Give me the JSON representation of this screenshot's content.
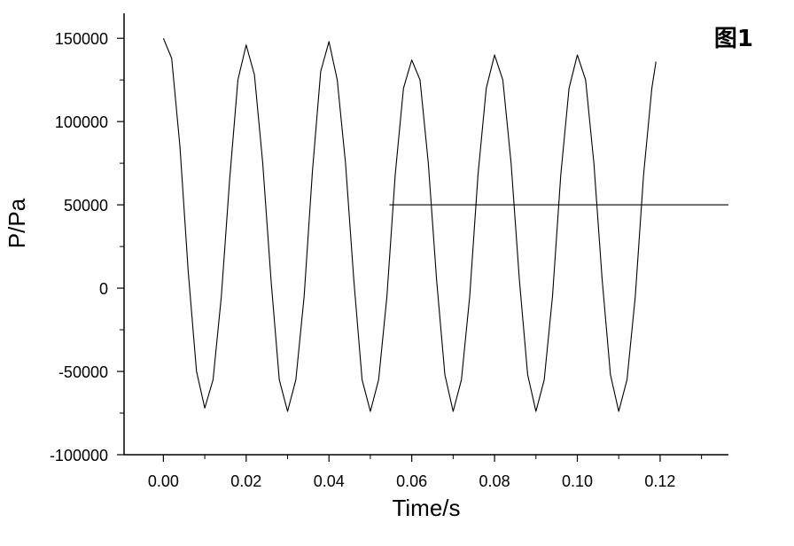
{
  "chart_data": {
    "type": "line",
    "badge": "图1",
    "xlabel": "Time/s",
    "ylabel": "P/Pa",
    "xlim": [
      -0.0095,
      0.1365
    ],
    "ylim": [
      -100000,
      165000
    ],
    "x_ticks": [
      0.0,
      0.02,
      0.04,
      0.06,
      0.08,
      0.1,
      0.12
    ],
    "x_tick_labels": [
      "0.00",
      "0.02",
      "0.04",
      "0.06",
      "0.08",
      "0.10",
      "0.12"
    ],
    "y_ticks": [
      -100000,
      -50000,
      0,
      50000,
      100000,
      150000
    ],
    "y_tick_labels": [
      "-100000",
      "-50000",
      "0",
      "50000",
      "100000",
      "150000"
    ],
    "grid": false,
    "series": [
      {
        "values_description_free": true,
        "x": [
          0.0,
          0.002,
          0.004,
          0.006,
          0.008,
          0.01,
          0.012,
          0.014,
          0.016,
          0.018,
          0.02,
          0.022,
          0.024,
          0.026,
          0.028,
          0.03,
          0.032,
          0.034,
          0.036,
          0.038,
          0.04,
          0.042,
          0.044,
          0.046,
          0.048,
          0.05,
          0.052,
          0.054,
          0.056,
          0.058,
          0.06,
          0.062,
          0.064,
          0.066,
          0.068,
          0.07,
          0.072,
          0.074,
          0.076,
          0.078,
          0.08,
          0.082,
          0.084,
          0.086,
          0.088,
          0.09,
          0.092,
          0.094,
          0.096,
          0.098,
          0.1,
          0.102,
          0.104,
          0.106,
          0.108,
          0.11,
          0.112,
          0.114,
          0.116,
          0.118,
          0.119
        ],
        "y": [
          150000,
          138000,
          85000,
          10000,
          -50000,
          -72000,
          -55000,
          -5000,
          65000,
          125000,
          146000,
          128000,
          75000,
          5000,
          -55000,
          -74000,
          -55000,
          -5000,
          70000,
          130000,
          148000,
          125000,
          75000,
          5000,
          -55000,
          -74000,
          -55000,
          -5000,
          68000,
          120000,
          137000,
          125000,
          75000,
          5000,
          -52000,
          -74000,
          -55000,
          -5000,
          68000,
          120000,
          140000,
          125000,
          75000,
          5000,
          -52000,
          -74000,
          -55000,
          -5000,
          68000,
          120000,
          140000,
          125000,
          75000,
          5000,
          -52000,
          -74000,
          -55000,
          -5000,
          68000,
          120000,
          136000
        ]
      },
      {
        "x": [
          0.0546,
          0.1365
        ],
        "y": [
          50000,
          50000
        ]
      }
    ]
  }
}
